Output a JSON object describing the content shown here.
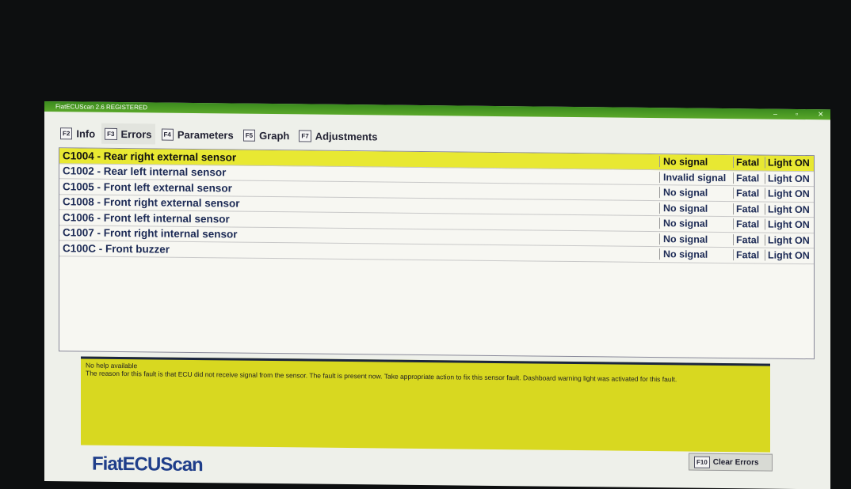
{
  "window": {
    "title": "FiatECUScan 2.6 REGISTERED"
  },
  "tabs": [
    {
      "key": "F2",
      "label": "Info"
    },
    {
      "key": "F3",
      "label": "Errors"
    },
    {
      "key": "F4",
      "label": "Parameters"
    },
    {
      "key": "F5",
      "label": "Graph"
    },
    {
      "key": "F7",
      "label": "Adjustments"
    }
  ],
  "errors": [
    {
      "name": "C1004 - Rear right external sensor",
      "status": "No signal",
      "severity": "Fatal",
      "light": "Light ON"
    },
    {
      "name": "C1002 - Rear left internal sensor",
      "status": "Invalid signal",
      "severity": "Fatal",
      "light": "Light ON"
    },
    {
      "name": "C1005 - Front left external sensor",
      "status": "No signal",
      "severity": "Fatal",
      "light": "Light ON"
    },
    {
      "name": "C1008 - Front right external sensor",
      "status": "No signal",
      "severity": "Fatal",
      "light": "Light ON"
    },
    {
      "name": "C1006 - Front left internal sensor",
      "status": "No signal",
      "severity": "Fatal",
      "light": "Light ON"
    },
    {
      "name": "C1007 - Front right internal sensor",
      "status": "No signal",
      "severity": "Fatal",
      "light": "Light ON"
    },
    {
      "name": "C100C - Front buzzer",
      "status": "No signal",
      "severity": "Fatal",
      "light": "Light ON"
    }
  ],
  "help": {
    "title": "No help available",
    "text": "The reason for this fault is that ECU did not receive signal from the sensor. The fault is present now. Take appropriate action to fix this sensor fault. Dashboard warning light was activated for this fault."
  },
  "footer": {
    "logo": "FiatECUScan",
    "clear_key": "F10",
    "clear_label": "Clear Errors"
  }
}
